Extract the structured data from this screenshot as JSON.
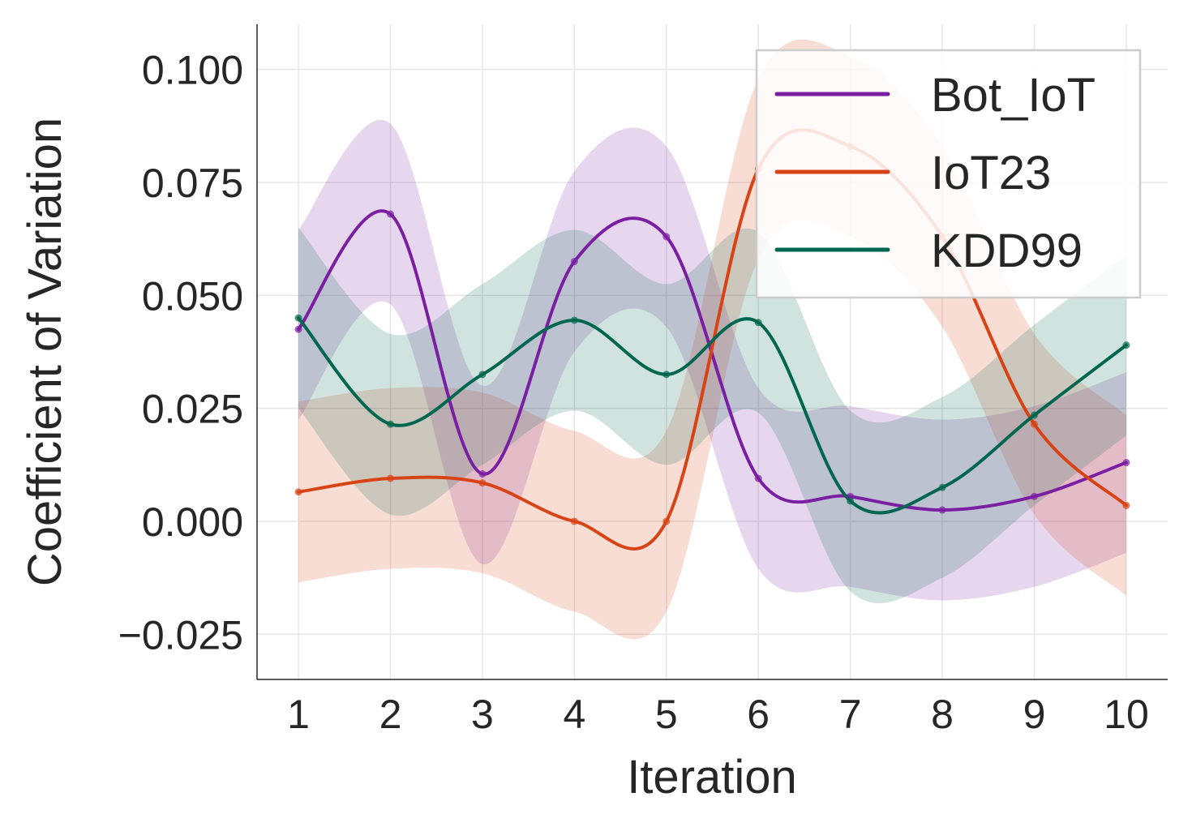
{
  "chart_data": {
    "type": "line",
    "title": "",
    "xlabel": "Iteration",
    "ylabel": "Coefficient of Variation",
    "x": [
      1,
      2,
      3,
      4,
      5,
      6,
      7,
      8,
      9,
      10
    ],
    "xlim": [
      0.55,
      10.45
    ],
    "ylim": [
      -0.035,
      0.11
    ],
    "xticks": [
      1,
      2,
      3,
      4,
      5,
      6,
      7,
      8,
      9,
      10
    ],
    "xtick_labels": [
      "1",
      "2",
      "3",
      "4",
      "5",
      "6",
      "7",
      "8",
      "9",
      "10"
    ],
    "yticks": [
      -0.025,
      0.0,
      0.025,
      0.05,
      0.075,
      0.1
    ],
    "ytick_labels": [
      "−0.025",
      "0.000",
      "0.025",
      "0.050",
      "0.075",
      "0.100"
    ],
    "grid": true,
    "legend_position": "top-right",
    "series": [
      {
        "name": "Bot_IoT",
        "color": "#7b1fa2",
        "values": [
          0.0425,
          0.068,
          0.0105,
          0.0575,
          0.063,
          0.0095,
          0.0055,
          0.0025,
          0.0055,
          0.013
        ],
        "upper": [
          0.0645,
          0.088,
          0.03,
          0.0775,
          0.083,
          0.0295,
          0.0255,
          0.0225,
          0.0255,
          0.033
        ],
        "lower": [
          0.0225,
          0.048,
          -0.0095,
          0.0375,
          0.043,
          -0.0105,
          -0.0145,
          -0.0175,
          -0.0145,
          -0.007
        ]
      },
      {
        "name": "IoT23",
        "color": "#d84315",
        "values": [
          0.0065,
          0.0095,
          0.0085,
          0.0,
          0.0,
          0.078,
          0.083,
          0.063,
          0.0215,
          0.0035
        ],
        "upper": [
          0.0265,
          0.0295,
          0.0285,
          0.02,
          0.02,
          0.098,
          0.103,
          0.083,
          0.0415,
          0.0235
        ],
        "lower": [
          -0.0135,
          -0.0105,
          -0.0115,
          -0.02,
          -0.02,
          0.058,
          0.063,
          0.043,
          0.0015,
          -0.0165
        ]
      },
      {
        "name": "KDD99",
        "color": "#00664f",
        "values": [
          0.045,
          0.0215,
          0.0325,
          0.0445,
          0.0325,
          0.044,
          0.0045,
          0.0075,
          0.0235,
          0.039
        ],
        "upper": [
          0.065,
          0.0415,
          0.0525,
          0.0645,
          0.0525,
          0.064,
          0.0245,
          0.0275,
          0.0435,
          0.059
        ],
        "lower": [
          0.025,
          0.0015,
          0.0125,
          0.0245,
          0.0125,
          0.024,
          -0.0155,
          -0.0125,
          0.0035,
          0.019
        ]
      }
    ]
  }
}
